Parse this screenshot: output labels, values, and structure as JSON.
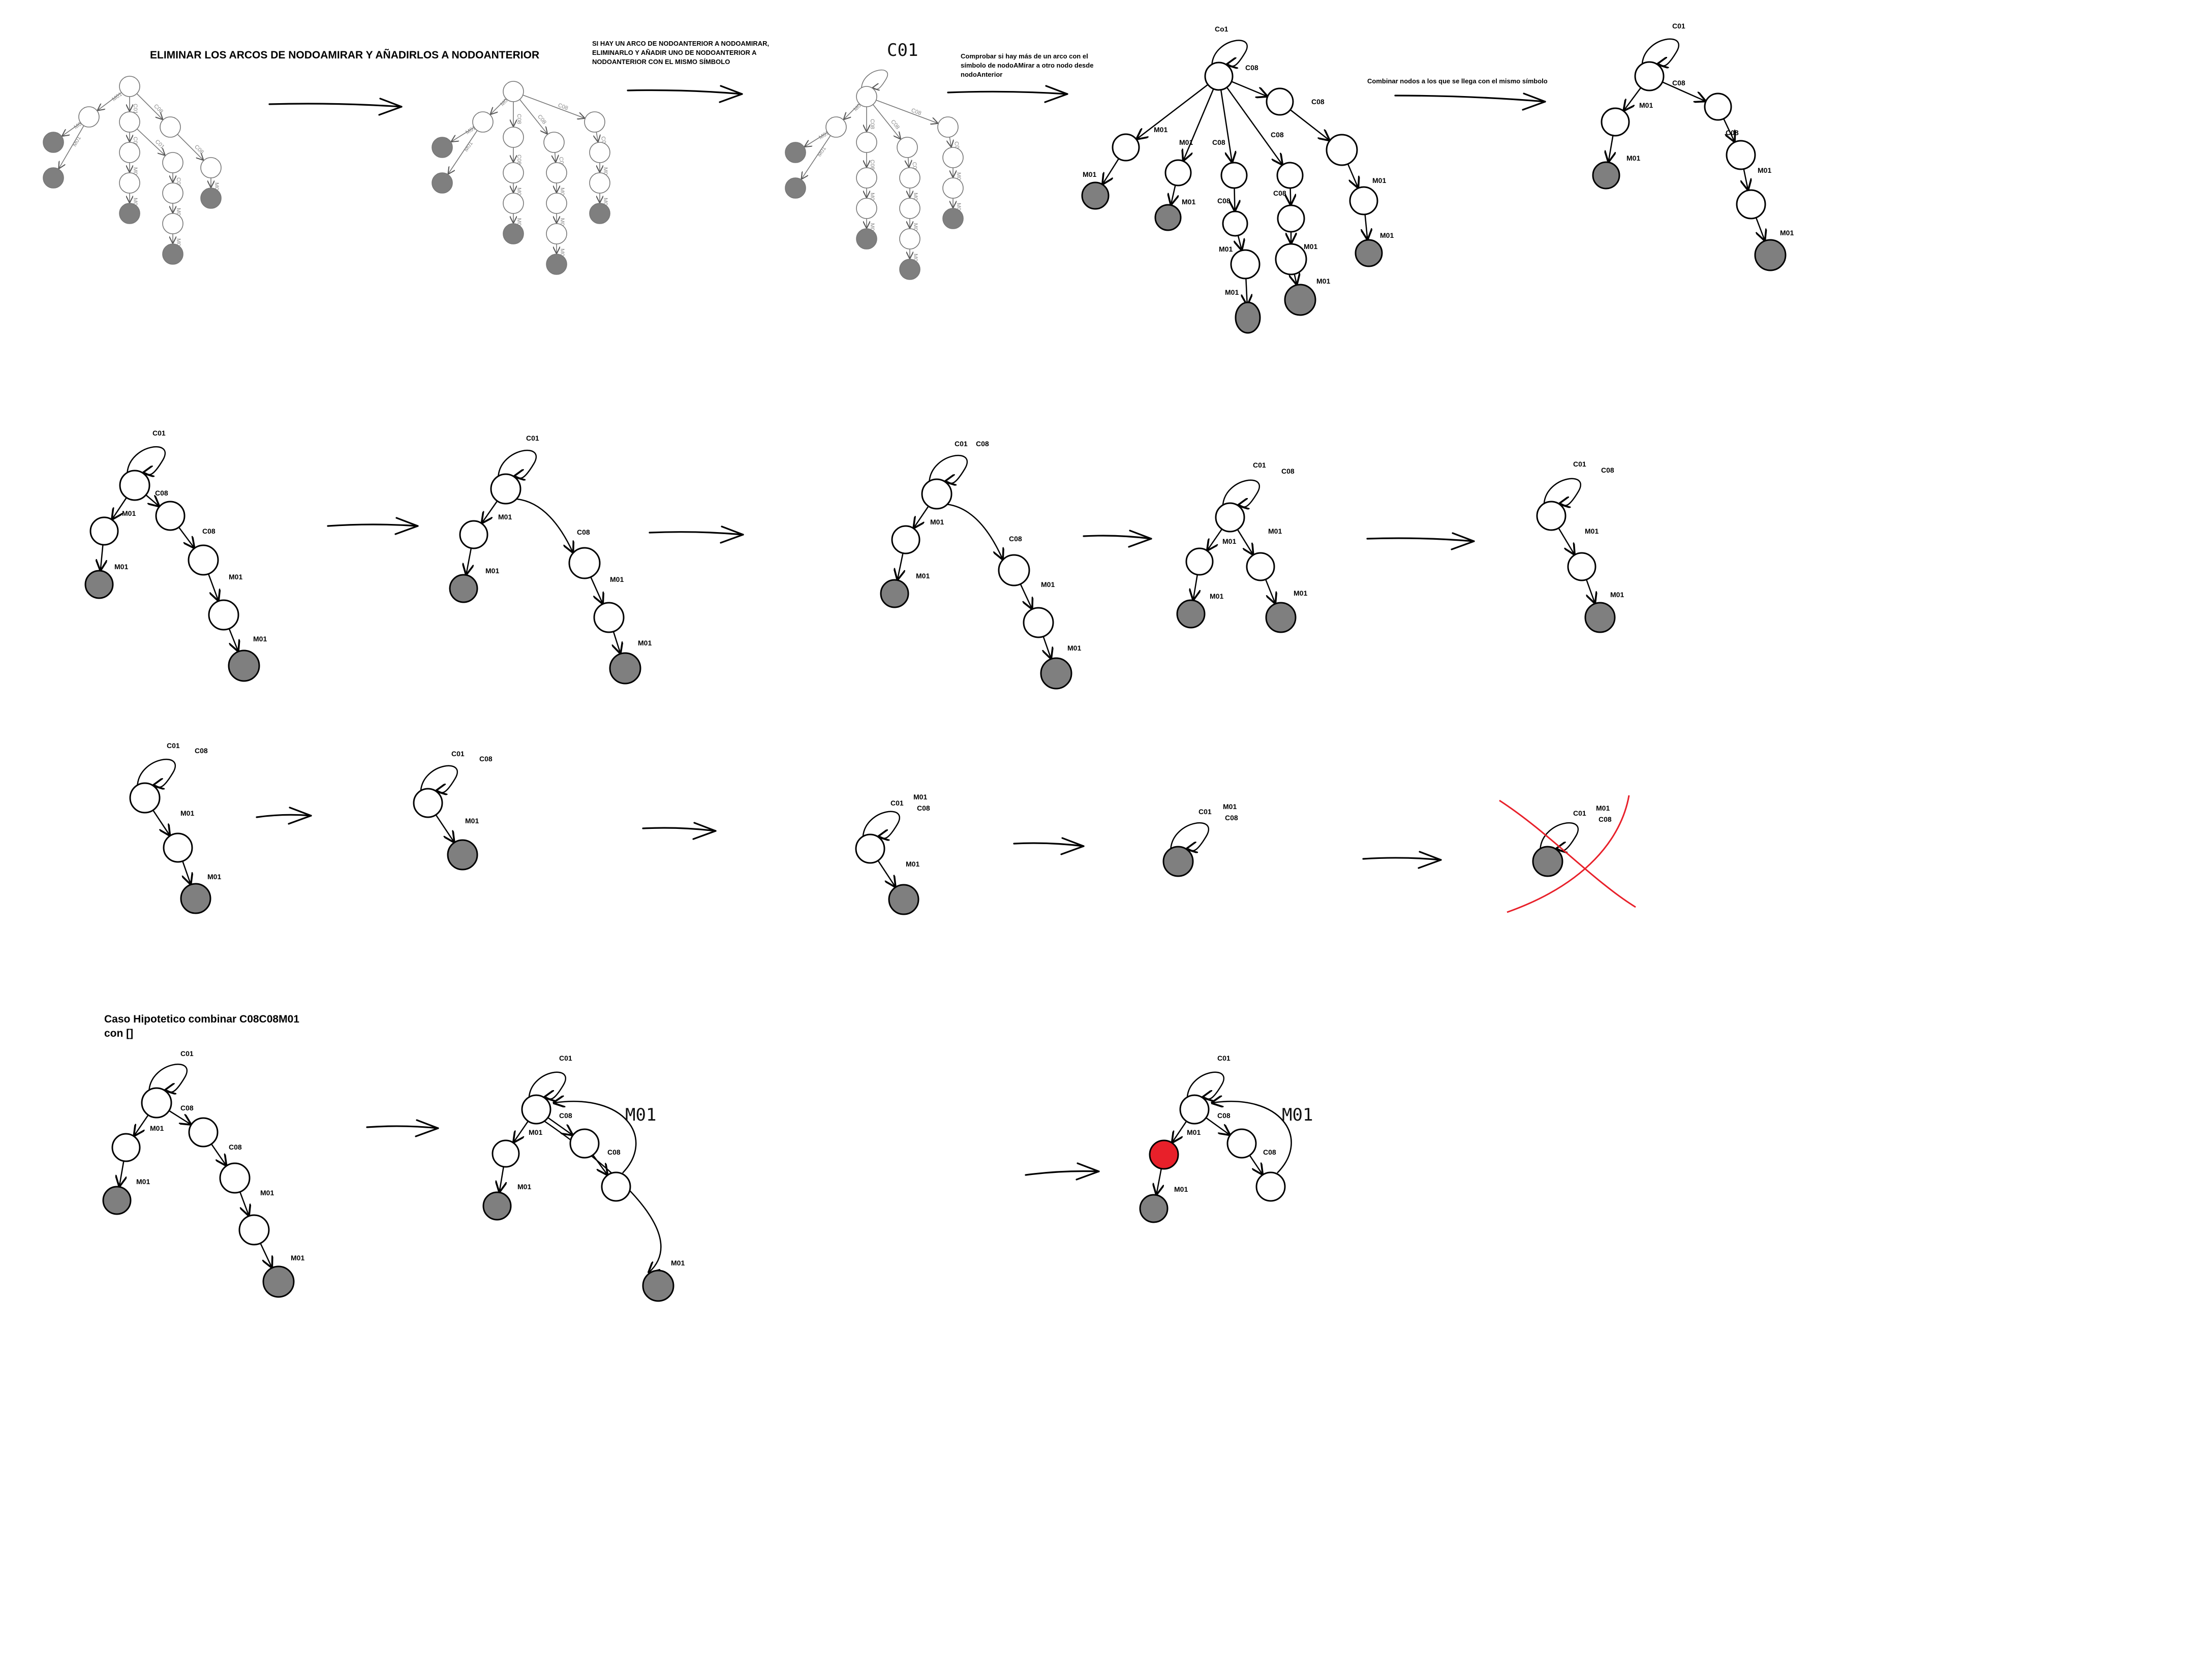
{
  "titles": {
    "main": "ELIMINAR LOS ARCOS DE NODOAMIRAR Y AÑADIRLOS A NODOANTERIOR",
    "note1": [
      "SI HAY UN ARCO DE NODOANTERIOR A NODOAMIRAR,",
      "ELIMINARLO Y AÑADIR UNO DE NODOANTERIOR A",
      "NODOANTERIOR CON EL MISMO SÍMBOLO"
    ],
    "note2": [
      "Comprobar si hay más de un arco con el",
      "símbolo de nodoAMirar a otro nodo desde",
      "nodoAnterior"
    ],
    "note3": "Combinar nodos a los que se llega con el mismo símbolo",
    "caso": [
      "Caso Hipotetico combinar C08C08M01",
      "con []"
    ]
  },
  "symbols": {
    "c01": "C01",
    "co1": "Co1",
    "c08": "C08",
    "m01": "M01",
    "c01_hand": "C01",
    "m01_hand": "M01"
  },
  "colors": {
    "accept": "#7f7f7f",
    "node_fill": "#ffffff",
    "highlight": "#e8202a",
    "cross": "#e8202a",
    "faint": "#777777"
  }
}
